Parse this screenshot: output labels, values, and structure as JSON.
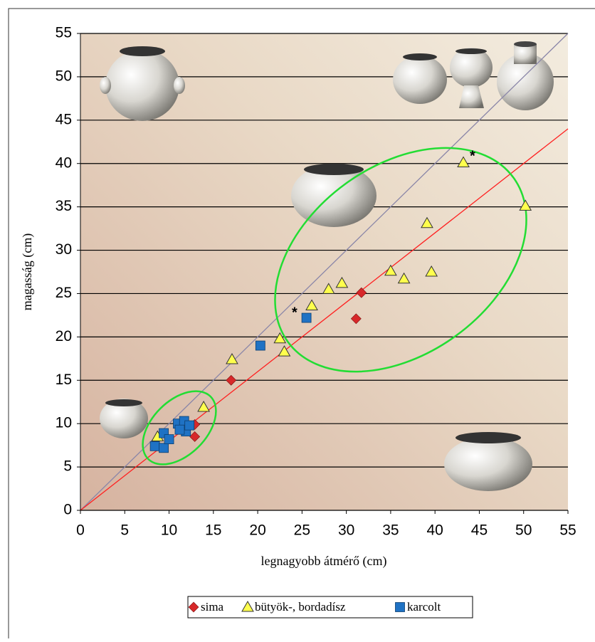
{
  "chart_data": {
    "type": "scatter",
    "xlabel": "legnagyobb átmérő (cm)",
    "ylabel": "magasság (cm)",
    "xlim": [
      0,
      55
    ],
    "ylim": [
      0,
      55
    ],
    "xticks": [
      0,
      5,
      10,
      15,
      20,
      25,
      30,
      35,
      40,
      45,
      50,
      55
    ],
    "yticks": [
      0,
      5,
      10,
      15,
      20,
      25,
      30,
      35,
      40,
      45,
      50,
      55
    ],
    "grid": "y",
    "legend": "bottom",
    "series": [
      {
        "name": "sima",
        "color": "#d7282a",
        "marker": "diamond",
        "x": [
          12.9,
          12.9,
          17,
          31.7,
          31.1
        ],
        "y": [
          8.5,
          9.9,
          15,
          25.1,
          22.1
        ]
      },
      {
        "name": "bütyök-, bordadísz",
        "color": "#ffff4d",
        "marker": "triangle",
        "x": [
          8.7,
          13.9,
          17.1,
          22.5,
          23,
          26.1,
          28,
          29.5,
          35,
          36.5,
          39.6,
          39.1,
          43.2,
          50.2
        ],
        "y": [
          8.5,
          11.9,
          17.4,
          19.8,
          18.3,
          23.6,
          25.5,
          26.2,
          27.6,
          26.7,
          27.5,
          33.1,
          40.1,
          35.1
        ]
      },
      {
        "name": "karcolt",
        "color": "#1f72c4",
        "marker": "square",
        "x": [
          20.3,
          25.5,
          8.4,
          9.4,
          9.4,
          10,
          11,
          11.7,
          11.9,
          12.3,
          11.2
        ],
        "y": [
          19,
          22.2,
          7.4,
          7.2,
          8.9,
          8.2,
          10,
          10.3,
          9.1,
          9.8,
          9.3
        ]
      }
    ],
    "lines": [
      {
        "color": "#8a86a8",
        "x": [
          0,
          55
        ],
        "y": [
          0,
          55
        ]
      },
      {
        "color": "#ff2020",
        "x": [
          0,
          55
        ],
        "y": [
          0,
          44
        ]
      }
    ],
    "annotations": [
      "*",
      "*"
    ]
  }
}
